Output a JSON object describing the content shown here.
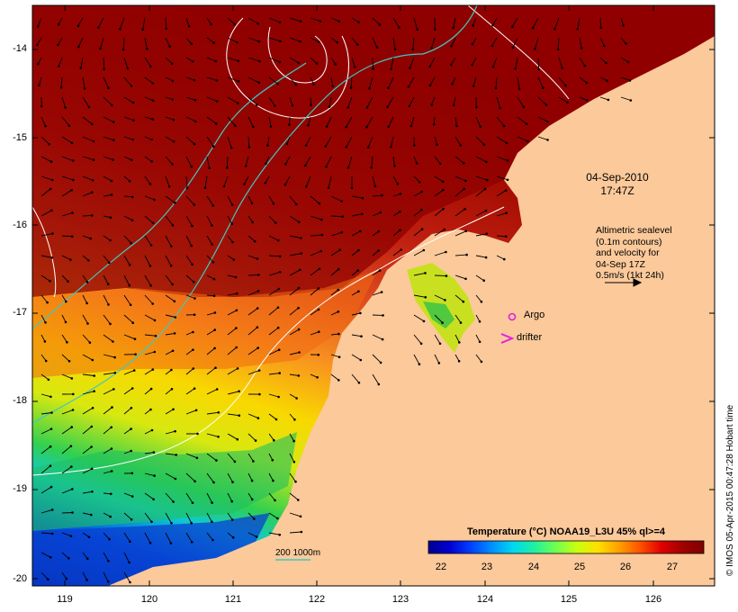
{
  "map": {
    "timestamp": "04-Sep-2010\n17:47Z",
    "altimetry_note": "Altimetric sealevel\n(0.1m contours)\nand velocity for\n04-Sep 17Z\n0.5m/s (1kt 24h)",
    "argo_label": "Argo",
    "drifter_label": "drifter",
    "depth_contour_label": "200  1000m",
    "credit": "© IMOS 05-Apr-2015 00:47:28 Hobart time",
    "lat_ticks": [
      "-14",
      "-15",
      "-16",
      "-17",
      "-18",
      "-19",
      "-20"
    ],
    "lon_ticks": [
      "119",
      "120",
      "121",
      "122",
      "123",
      "124",
      "125",
      "126"
    ],
    "land_color": "#fbc99a",
    "contour_color": "#40c8c0",
    "argo_color": "#e020e0",
    "drifter_color": "#e020e0"
  },
  "colorbar": {
    "title": "Temperature (°C) NOAA19_L3U 45% ql>=4",
    "ticks": [
      "22",
      "23",
      "24",
      "25",
      "26",
      "27"
    ],
    "colors": [
      "#00008f",
      "#0000d0",
      "#0040ff",
      "#0090ff",
      "#00d8f0",
      "#20f0a0",
      "#70ff50",
      "#c8ff10",
      "#ffe000",
      "#ffa000",
      "#ff5000",
      "#e00000",
      "#a00000",
      "#800000"
    ]
  }
}
